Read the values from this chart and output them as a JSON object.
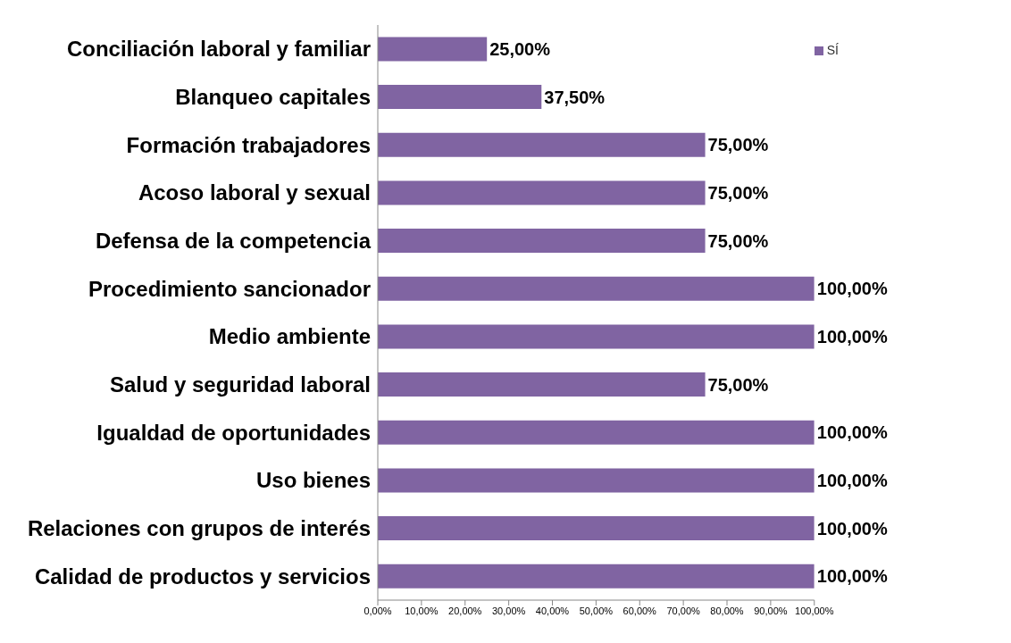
{
  "chart_data": {
    "type": "bar",
    "orientation": "horizontal",
    "categories": [
      "Conciliación laboral y familiar",
      "Blanqueo capitales",
      "Formación trabajadores",
      "Acoso laboral y sexual",
      "Defensa de la competencia",
      "Procedimiento sancionador",
      "Medio ambiente",
      "Salud y seguridad laboral",
      "Igualdad de oportunidades",
      "Uso bienes",
      "Relaciones con grupos de interés",
      "Calidad de productos y servicios"
    ],
    "series": [
      {
        "name": "SÍ",
        "color": "#8064a2",
        "values": [
          25,
          37.5,
          75,
          75,
          75,
          100,
          100,
          75,
          100,
          100,
          100,
          100
        ],
        "value_labels": [
          "25,00%",
          "37,50%",
          "75,00%",
          "75,00%",
          "75,00%",
          "100,00%",
          "100,00%",
          "75,00%",
          "100,00%",
          "100,00%",
          "100,00%",
          "100,00%"
        ]
      }
    ],
    "xlim": [
      0,
      100
    ],
    "xticks": [
      {
        "value": 0,
        "label": "0,00%"
      },
      {
        "value": 10,
        "label": "10,00%"
      },
      {
        "value": 20,
        "label": "20,00%"
      },
      {
        "value": 30,
        "label": "30,00%"
      },
      {
        "value": 40,
        "label": "40,00%"
      },
      {
        "value": 50,
        "label": "50,00%"
      },
      {
        "value": 60,
        "label": "60,00%"
      },
      {
        "value": 70,
        "label": "70,00%"
      },
      {
        "value": 80,
        "label": "80,00%"
      },
      {
        "value": 90,
        "label": "90,00%"
      },
      {
        "value": 100,
        "label": "100,00%"
      }
    ],
    "grid": false,
    "legend": "top right"
  }
}
